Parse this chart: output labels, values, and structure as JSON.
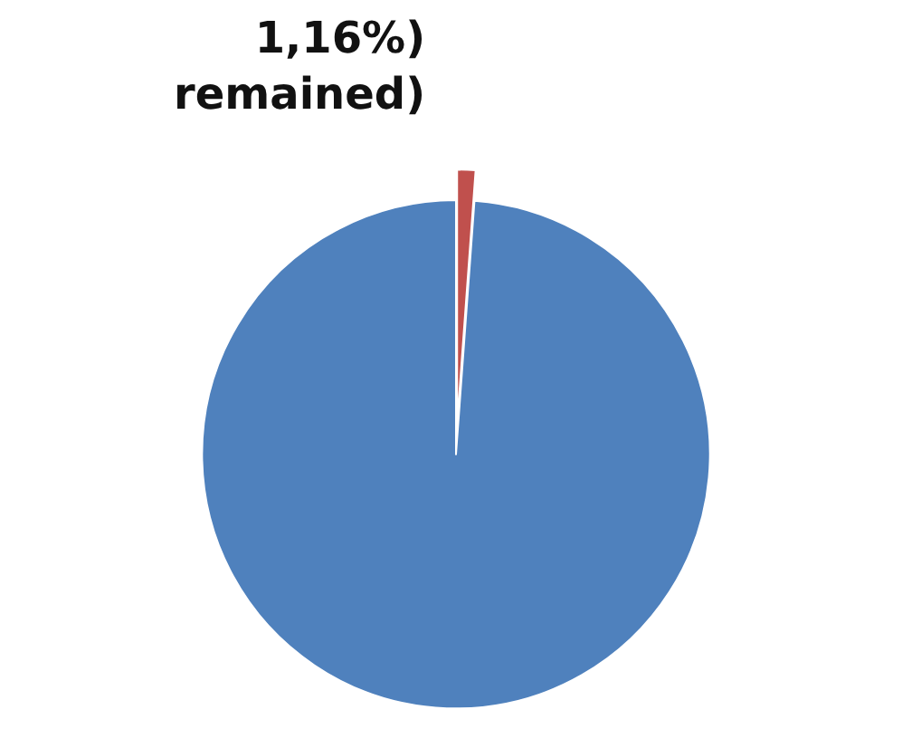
{
  "chart_data": {
    "type": "pie",
    "categories": [
      null,
      "1,16%)\nremained)"
    ],
    "values": [
      98.84,
      1.16
    ],
    "colors": [
      "#4f81bd",
      "#c0504d"
    ],
    "legend": false
  }
}
